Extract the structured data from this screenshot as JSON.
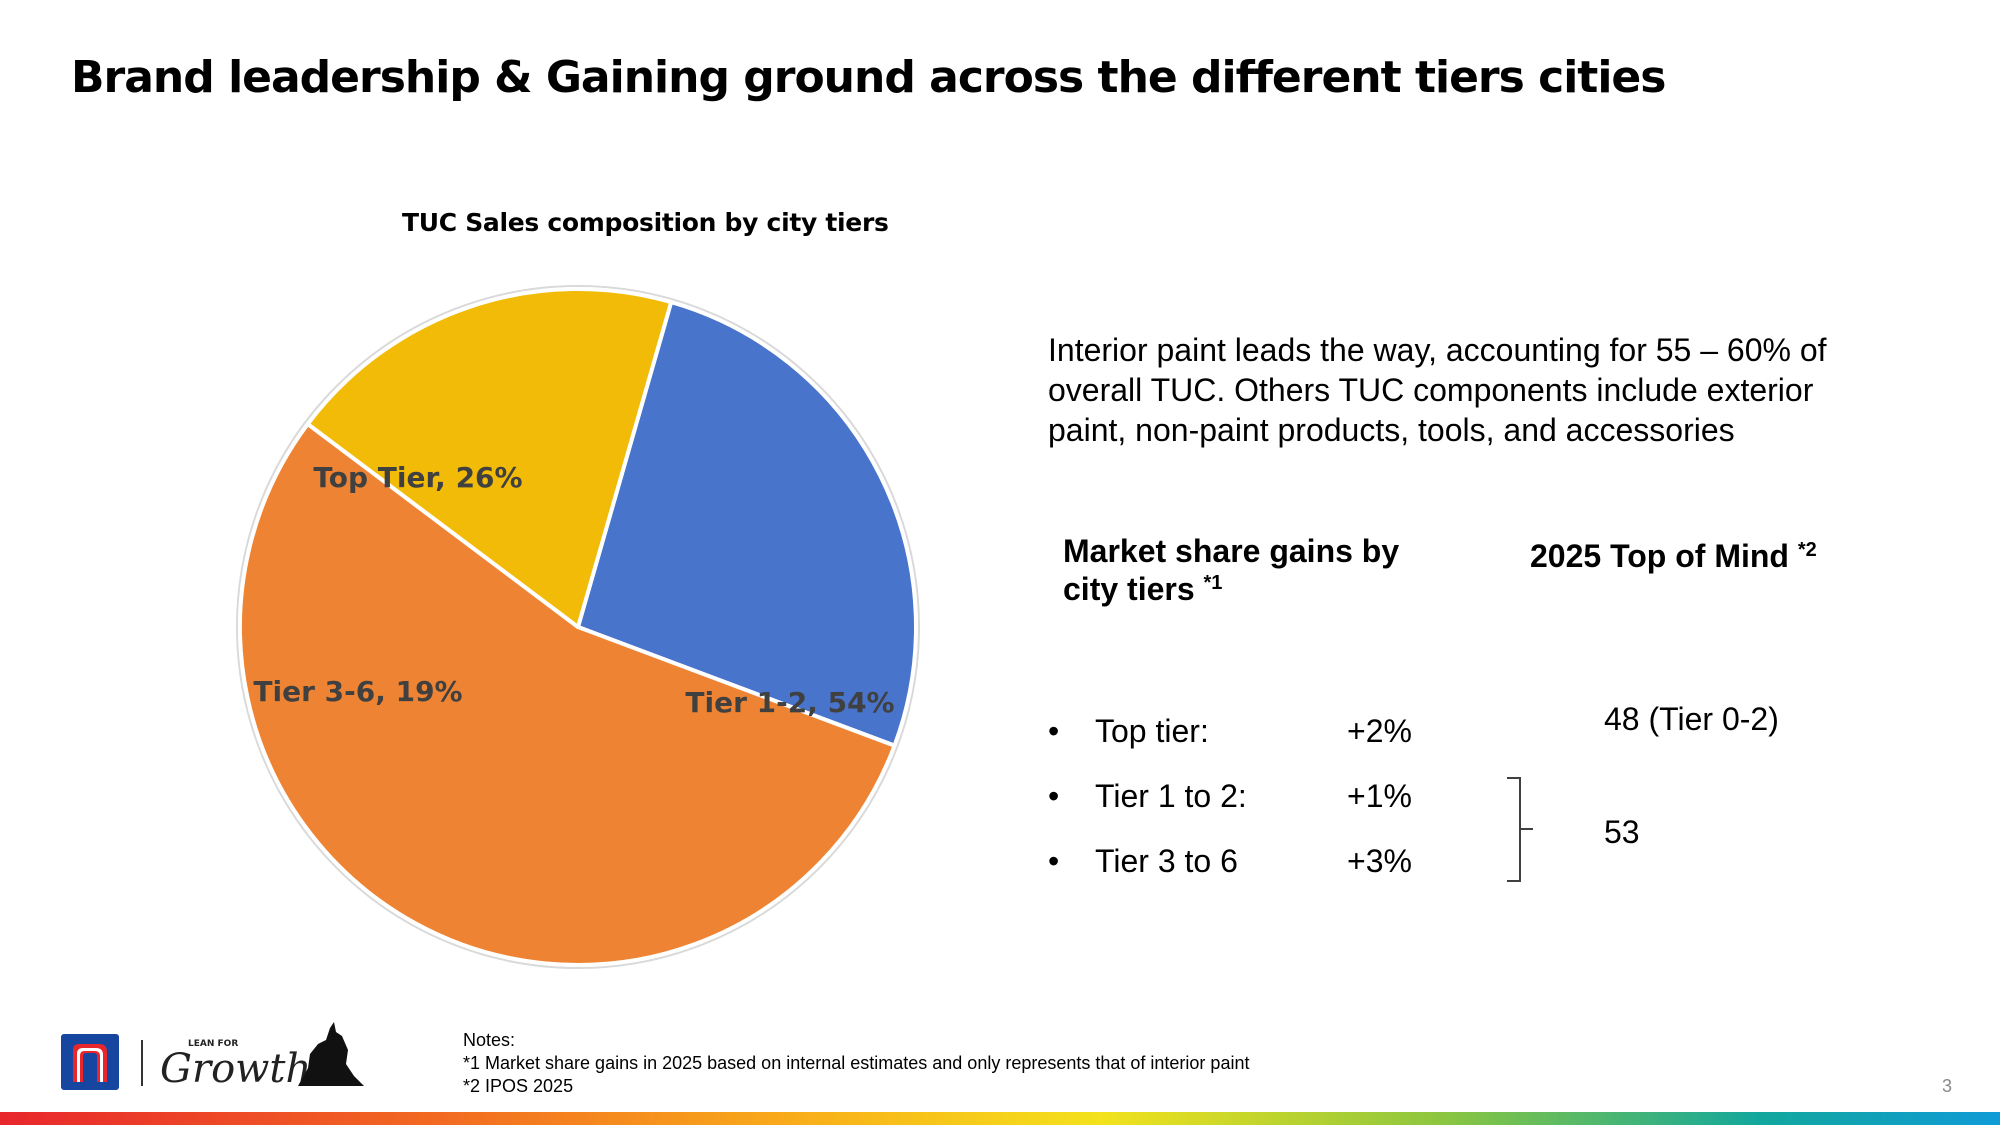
{
  "title": "Brand leadership & Gaining ground across the different tiers cities",
  "chart_data": {
    "type": "pie",
    "title": "TUC Sales composition by city tiers",
    "slices": [
      {
        "label": "Top Tier, 26%",
        "name": "Top Tier",
        "value": 26,
        "color": "#4874cb"
      },
      {
        "label": "Tier 1-2, 54%",
        "name": "Tier 1-2",
        "value": 54,
        "color": "#ee8433"
      },
      {
        "label": "Tier 3-6, 19%",
        "name": "Tier 3-6",
        "value": 19,
        "color": "#f2bb07"
      }
    ]
  },
  "intro_text": "Interior paint leads the way, accounting for 55 – 60% of overall TUC. Others TUC components include exterior paint, non-paint products, tools, and accessories",
  "market_share": {
    "heading": "Market share gains by city tiers",
    "footnote": "*1",
    "bullet": "•",
    "rows": [
      {
        "tier": "Top tier:",
        "value": "+2%"
      },
      {
        "tier": "Tier 1 to 2:",
        "value": "+1%"
      },
      {
        "tier": "Tier 3 to 6",
        "value": "+3%"
      }
    ]
  },
  "top_of_mind": {
    "heading": "2025 Top of Mind",
    "footnote": "*2",
    "values": [
      "48 (Tier 0-2)",
      "53"
    ]
  },
  "notes": {
    "heading": "Notes:",
    "lines": [
      "*1 Market share gains in 2025 based on internal estimates and only represents that of interior paint",
      "*2 IPOS 2025"
    ]
  },
  "logo": {
    "brand_letter": "n",
    "tagline_small": "LEAN FOR",
    "tagline_script": "Growth"
  },
  "page_number": "3"
}
